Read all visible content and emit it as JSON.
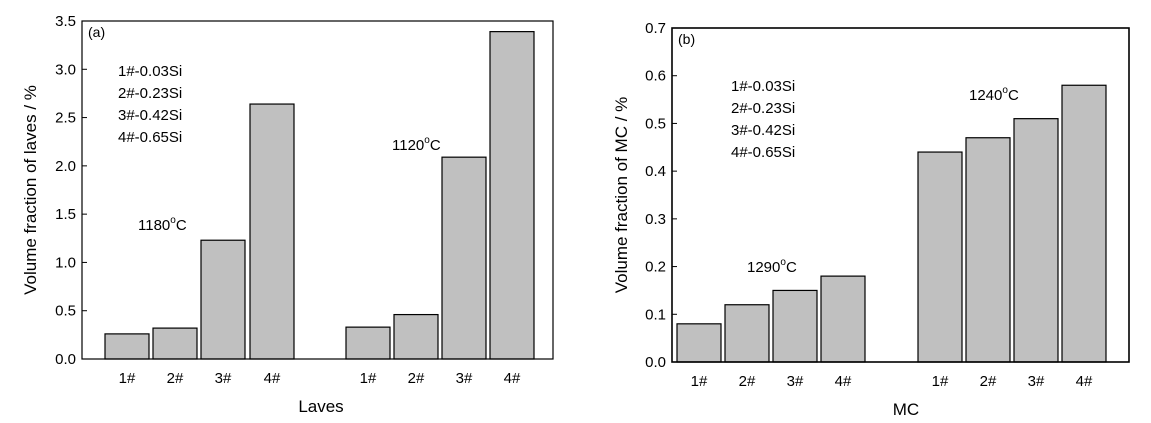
{
  "chart_data": [
    {
      "panel": "(a)",
      "type": "bar",
      "xlabel": "Laves",
      "ylabel": "Volume fraction of laves / %",
      "ylim": [
        0,
        3.5
      ],
      "yticks": [
        "0.0",
        "0.5",
        "1.0",
        "1.5",
        "2.0",
        "2.5",
        "3.0",
        "3.5"
      ],
      "groups": [
        {
          "temp_value": "1180",
          "temp_unit": "C",
          "categories": [
            "1#",
            "2#",
            "3#",
            "4#"
          ],
          "values": [
            0.26,
            0.32,
            1.23,
            2.64
          ]
        },
        {
          "temp_value": "1120",
          "temp_unit": "C",
          "categories": [
            "1#",
            "2#",
            "3#",
            "4#"
          ],
          "values": [
            0.33,
            0.46,
            2.09,
            3.39
          ]
        }
      ],
      "legend": [
        "1#-0.03Si",
        "2#-0.23Si",
        "3#-0.42Si",
        "4#-0.65Si"
      ],
      "bar_color": "#c0c0c0"
    },
    {
      "panel": "(b)",
      "type": "bar",
      "xlabel": "MC",
      "ylabel": "Volume fraction of MC / %",
      "ylim": [
        0,
        0.7
      ],
      "yticks": [
        "0.0",
        "0.1",
        "0.2",
        "0.3",
        "0.4",
        "0.5",
        "0.6",
        "0.7"
      ],
      "groups": [
        {
          "temp_value": "1290",
          "temp_unit": "C",
          "categories": [
            "1#",
            "2#",
            "3#",
            "4#"
          ],
          "values": [
            0.08,
            0.12,
            0.15,
            0.18
          ]
        },
        {
          "temp_value": "1240",
          "temp_unit": "C",
          "categories": [
            "1#",
            "2#",
            "3#",
            "4#"
          ],
          "values": [
            0.44,
            0.47,
            0.51,
            0.58
          ]
        }
      ],
      "legend": [
        "1#-0.03Si",
        "2#-0.23Si",
        "3#-0.42Si",
        "4#-0.65Si"
      ],
      "bar_color": "#c0c0c0"
    }
  ]
}
